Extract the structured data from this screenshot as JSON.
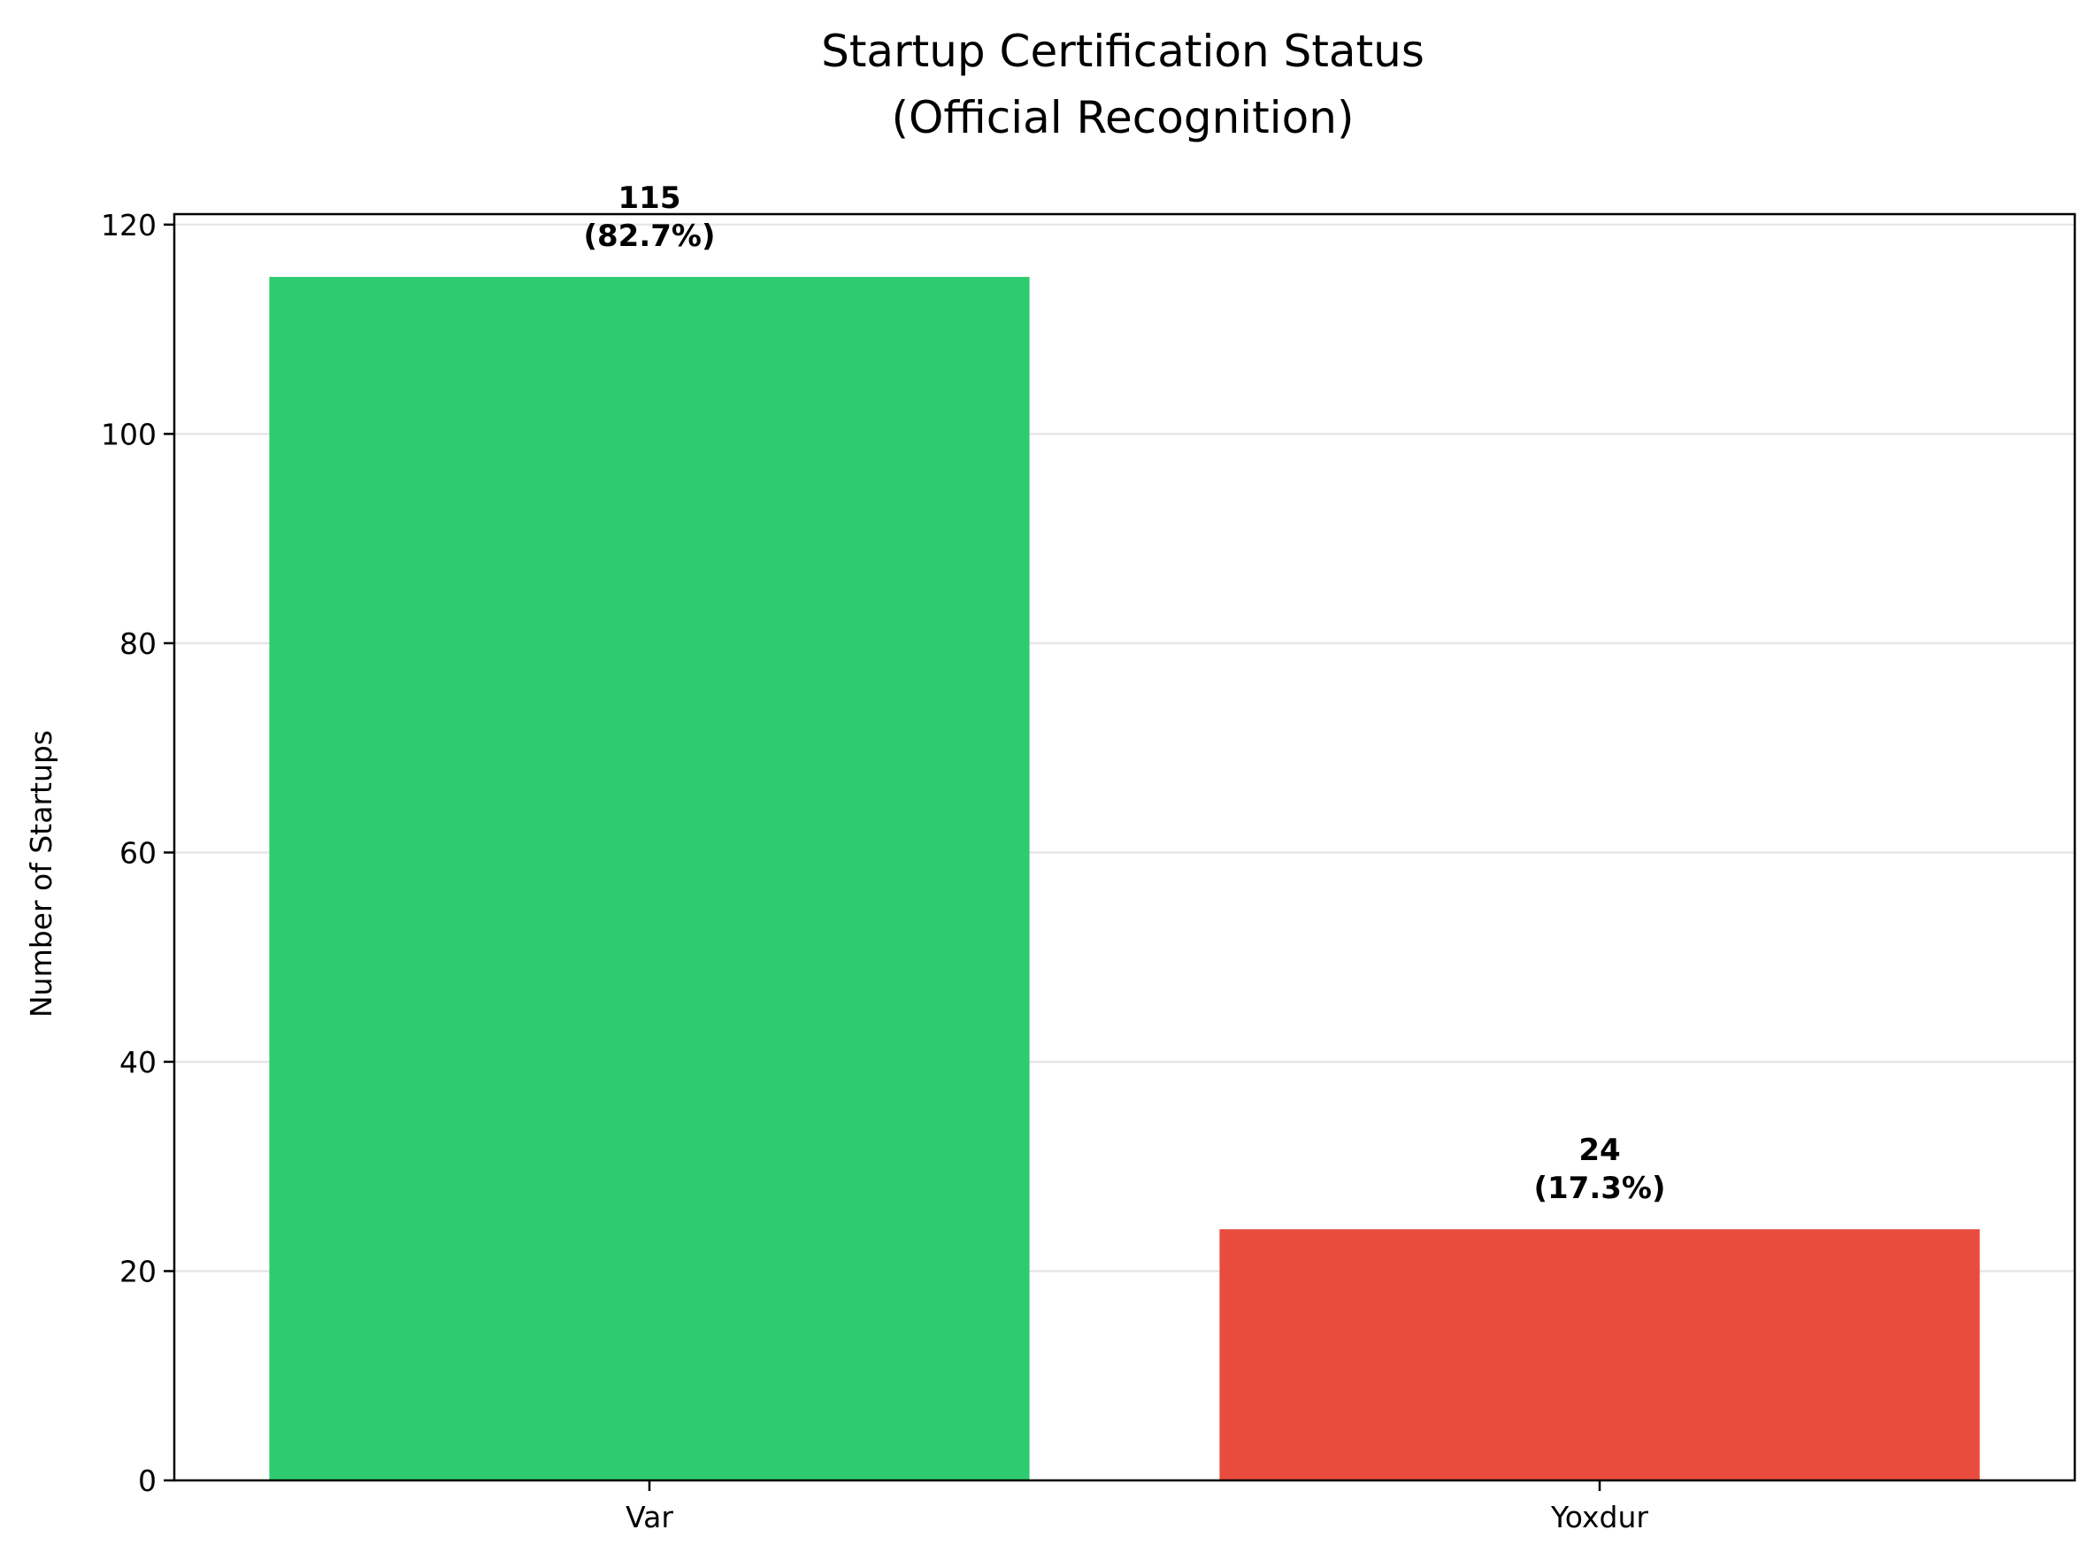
{
  "chart_data": {
    "type": "bar",
    "title": [
      "Startup Certification Status",
      "(Official Recognition)"
    ],
    "xlabel": "",
    "ylabel": "Number of Startups",
    "categories": [
      "Var",
      "Yoxdur"
    ],
    "values": [
      115,
      24
    ],
    "value_labels": [
      [
        "115",
        "(82.7%)"
      ],
      [
        "24",
        "(17.3%)"
      ]
    ],
    "colors": [
      "#2ecc71",
      "#e74c3c"
    ],
    "ylim": [
      0,
      121
    ],
    "yticks": [
      0,
      20,
      40,
      60,
      80,
      100,
      120
    ],
    "grid": "y",
    "legend": "none"
  }
}
